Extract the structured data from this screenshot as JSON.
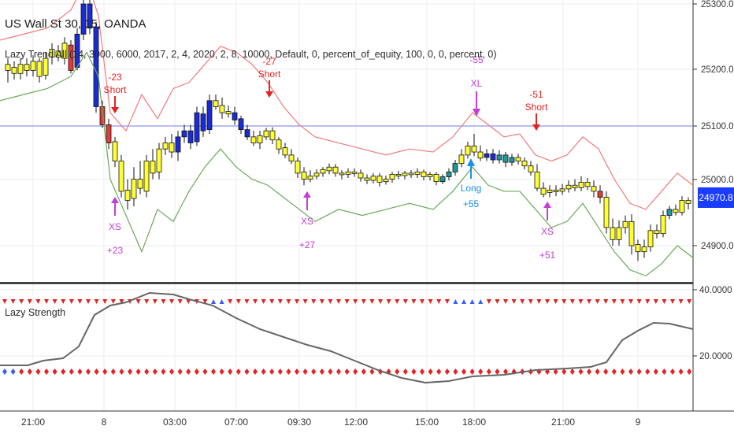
{
  "header": {
    "symbol_title": "US Wall St 30, 15, OANDA",
    "indicator_params": "Lazy Trend All (14, 3000, 6000, 2017, 2, 4, 2020, 2, 8, 10000, Default, 0, percent_of_equity, 100, 0, 0, percent, 0)"
  },
  "sub_pane": {
    "title": "Lazy Strength"
  },
  "price_axis": {
    "labels": [
      "25300.0",
      "25200.0",
      "25100.0",
      "25000.0",
      "24900.0"
    ],
    "current_price": "24970.8",
    "hline_level": "25100.0"
  },
  "sub_axis": {
    "labels": [
      "40.0000",
      "20.0000"
    ]
  },
  "time_axis": {
    "labels": [
      "21:00",
      "8",
      "03:00",
      "07:00",
      "09:30",
      "12:00",
      "15:00",
      "18:00",
      "21:00",
      "9"
    ]
  },
  "trade_markers": [
    {
      "side": "short",
      "label": "Short",
      "value": "-23"
    },
    {
      "side": "exit_short",
      "label": "XS",
      "value": "+23"
    },
    {
      "side": "short",
      "label": "Short",
      "value": "-27"
    },
    {
      "side": "exit_short",
      "label": "XS",
      "value": "+27"
    },
    {
      "side": "exit_long",
      "label": "XL",
      "value": "-55"
    },
    {
      "side": "long",
      "label": "Long",
      "value": "+55"
    },
    {
      "side": "short",
      "label": "Short",
      "value": "-51"
    },
    {
      "side": "exit_short",
      "label": "XS",
      "value": "+51"
    }
  ],
  "colors": {
    "upper_band": "#f07a7a",
    "lower_band": "#6aaa5a",
    "hline": "#9fa8f0",
    "candle_yellow": "#ffff33",
    "candle_blue": "#1a2bd8",
    "candle_red": "#e03a3a",
    "candle_teal": "#1a9a9a",
    "candle_black": "#111111",
    "short_marker": "#e52222",
    "exit_marker": "#c23fd6",
    "long_marker": "#1b8fe6",
    "strength_line": "#666666",
    "badge": "#1a3cff"
  }
}
